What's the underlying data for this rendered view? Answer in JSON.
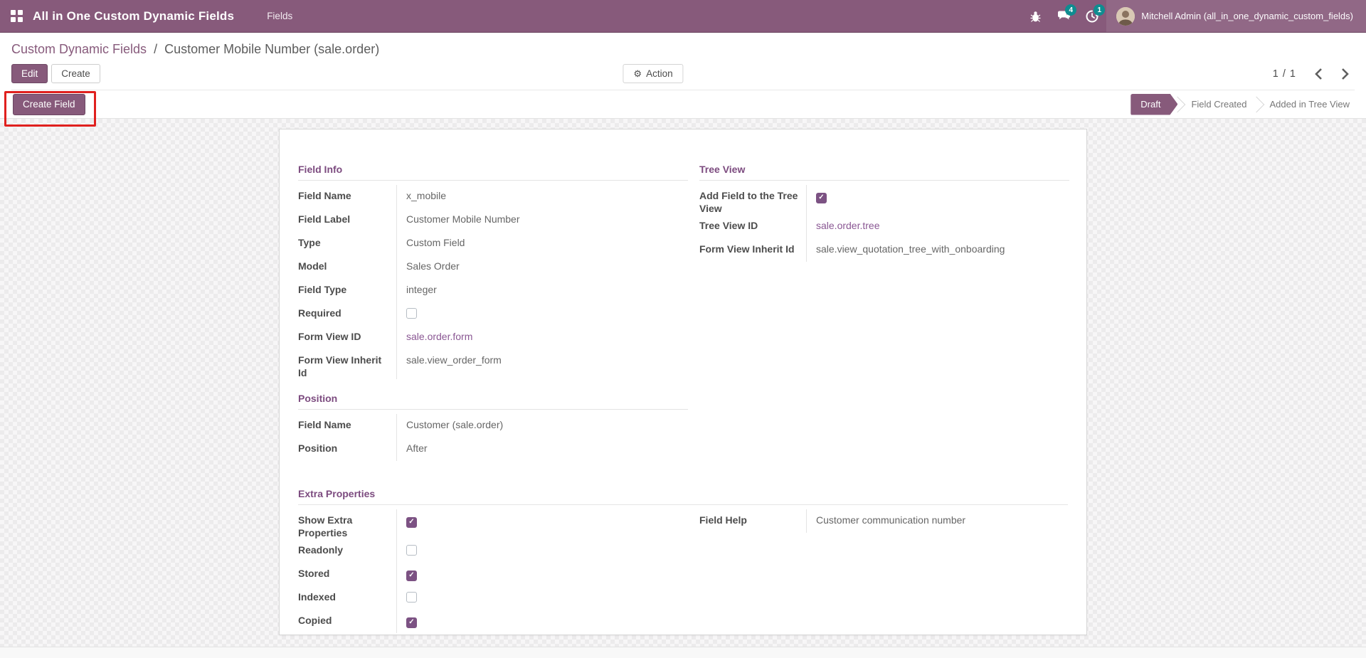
{
  "colors": {
    "navbar": "#875A7B",
    "primary": "#875A7B",
    "badge": "#0f8c90",
    "annotation_red": "#e0201e",
    "link_purple": "#8a5793",
    "section_title_purple": "#7c4b7f"
  },
  "icons": {
    "apps_menu": "grid-icon",
    "debug": "bug-icon",
    "messages": "chat-bubbles-icon",
    "activities": "clock-icon",
    "gear_glyph": "⚙",
    "check_glyph": "✓"
  },
  "navbar": {
    "app_title": "All in One Custom Dynamic Fields",
    "menu_items": [
      {
        "label": "Fields"
      }
    ],
    "messages_badge": "4",
    "activities_badge": "1",
    "user_name": "Mitchell Admin (all_in_one_dynamic_custom_fields)"
  },
  "control_panel": {
    "breadcrumb_parent": "Custom Dynamic Fields",
    "breadcrumb_separator": "/",
    "breadcrumb_current": "Customer Mobile Number (sale.order)",
    "edit_label": "Edit",
    "create_label": "Create",
    "action_label": "Action",
    "pager": "1 / 1"
  },
  "statusbar": {
    "create_field_label": "Create Field",
    "states": [
      {
        "label": "Draft",
        "active": true
      },
      {
        "label": "Field Created",
        "active": false
      },
      {
        "label": "Added in Tree View",
        "active": false
      }
    ]
  },
  "form": {
    "field_info": {
      "title": "Field Info",
      "rows": [
        {
          "label": "Field Name",
          "type": "text",
          "value": "x_mobile"
        },
        {
          "label": "Field Label",
          "type": "text",
          "value": "Customer Mobile Number"
        },
        {
          "label": "Type",
          "type": "text",
          "value": "Custom Field"
        },
        {
          "label": "Model",
          "type": "text",
          "value": "Sales Order"
        },
        {
          "label": "Field Type",
          "type": "text",
          "value": "integer"
        },
        {
          "label": "Required",
          "type": "checkbox",
          "checked": false
        },
        {
          "label": "Form View ID",
          "type": "link",
          "value": "sale.order.form"
        },
        {
          "label": "Form View Inherit Id",
          "type": "text",
          "value": "sale.view_order_form"
        }
      ]
    },
    "tree_view": {
      "title": "Tree View",
      "rows": [
        {
          "label": "Add Field to the Tree View",
          "type": "checkbox",
          "checked": true
        },
        {
          "label": "Tree View ID",
          "type": "link",
          "value": "sale.order.tree"
        },
        {
          "label": "Form View Inherit Id",
          "type": "text",
          "value": "sale.view_quotation_tree_with_onboarding"
        }
      ]
    },
    "position": {
      "title": "Position",
      "rows": [
        {
          "label": "Field Name",
          "type": "text",
          "value": "Customer (sale.order)"
        },
        {
          "label": "Position",
          "type": "text",
          "value": "After"
        }
      ]
    },
    "extra_properties": {
      "title": "Extra Properties",
      "rows": [
        {
          "label": "Show Extra Properties",
          "type": "checkbox",
          "checked": true
        },
        {
          "label": "Readonly",
          "type": "checkbox",
          "checked": false
        },
        {
          "label": "Stored",
          "type": "checkbox",
          "checked": true
        },
        {
          "label": "Indexed",
          "type": "checkbox",
          "checked": false
        },
        {
          "label": "Copied",
          "type": "checkbox",
          "checked": true
        }
      ]
    },
    "help": {
      "rows": [
        {
          "label": "Field Help",
          "type": "text",
          "value": "Customer communication number"
        }
      ]
    }
  }
}
